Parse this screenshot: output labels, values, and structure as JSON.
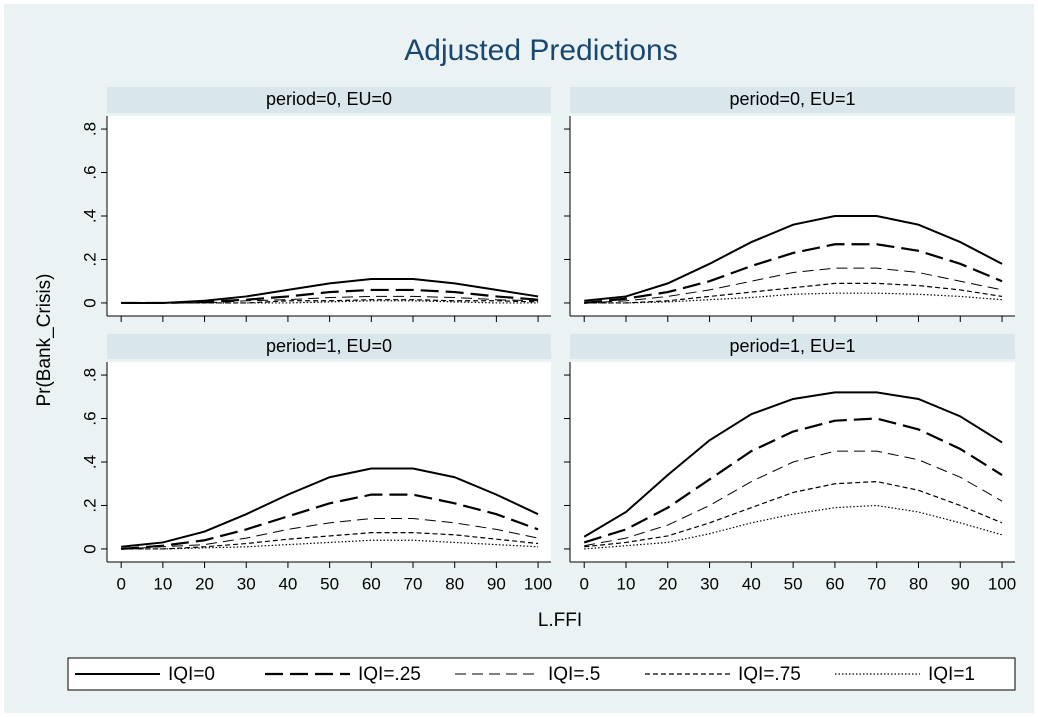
{
  "chart_data": {
    "type": "line",
    "title": "Adjusted Predictions",
    "x_label": "L.FFI",
    "y_label": "Pr(Bank_Crisis)",
    "x": [
      0,
      10,
      20,
      30,
      40,
      50,
      60,
      70,
      80,
      90,
      100
    ],
    "xlim": [
      -3.4,
      103.1
    ],
    "xticks": [
      0,
      10,
      20,
      30,
      40,
      50,
      60,
      70,
      80,
      90,
      100
    ],
    "ylim": [
      -0.06,
      0.86
    ],
    "yticks": [
      0,
      {
        "value": 0.2,
        "label": ".2"
      },
      {
        "value": 0.4,
        "label": ".4"
      },
      {
        "value": 0.6,
        "label": ".6"
      },
      {
        "value": 0.8,
        "label": ".8"
      }
    ],
    "grid": false,
    "series": [
      {
        "name": "IQI=0",
        "color": "#000000",
        "dash": "solid"
      },
      {
        "name": "IQI=.25",
        "color": "#000000",
        "dash": "long-dash"
      },
      {
        "name": "IQI=.5",
        "color": "#000000",
        "dash": "dash"
      },
      {
        "name": "IQI=.75",
        "color": "#000000",
        "dash": "short-dash"
      },
      {
        "name": "IQI=1",
        "color": "#000000",
        "dash": "dot"
      }
    ],
    "panels": [
      {
        "title": "period=0, EU=0",
        "values": [
          [
            0,
            0,
            0.01,
            0.03,
            0.06,
            0.09,
            0.11,
            0.11,
            0.09,
            0.06,
            0.03
          ],
          [
            0,
            0,
            0.005,
            0.015,
            0.03,
            0.05,
            0.06,
            0.06,
            0.05,
            0.03,
            0.015
          ],
          [
            0,
            0,
            0,
            0.01,
            0.015,
            0.025,
            0.03,
            0.03,
            0.025,
            0.015,
            0.01
          ],
          [
            0,
            0,
            0,
            0,
            0.01,
            0.01,
            0.015,
            0.015,
            0.01,
            0.01,
            0.005
          ],
          [
            0,
            0,
            0,
            0,
            0,
            0.005,
            0.01,
            0.01,
            0.005,
            0,
            0
          ]
        ]
      },
      {
        "title": "period=0, EU=1",
        "values": [
          [
            0.01,
            0.03,
            0.09,
            0.18,
            0.28,
            0.36,
            0.4,
            0.4,
            0.36,
            0.28,
            0.18
          ],
          [
            0,
            0.02,
            0.05,
            0.1,
            0.17,
            0.23,
            0.27,
            0.27,
            0.24,
            0.18,
            0.1
          ],
          [
            0,
            0.01,
            0.03,
            0.06,
            0.1,
            0.14,
            0.16,
            0.16,
            0.14,
            0.1,
            0.06
          ],
          [
            0,
            0,
            0.01,
            0.03,
            0.05,
            0.07,
            0.09,
            0.09,
            0.08,
            0.06,
            0.03
          ],
          [
            0,
            0,
            0.005,
            0.015,
            0.025,
            0.04,
            0.045,
            0.045,
            0.04,
            0.03,
            0.015
          ]
        ]
      },
      {
        "title": "period=1, EU=0",
        "values": [
          [
            0.01,
            0.03,
            0.08,
            0.16,
            0.25,
            0.33,
            0.37,
            0.37,
            0.33,
            0.25,
            0.16
          ],
          [
            0,
            0.015,
            0.04,
            0.09,
            0.15,
            0.21,
            0.25,
            0.25,
            0.21,
            0.16,
            0.09
          ],
          [
            0,
            0.01,
            0.02,
            0.05,
            0.09,
            0.12,
            0.14,
            0.14,
            0.12,
            0.09,
            0.05
          ],
          [
            0,
            0,
            0.01,
            0.025,
            0.045,
            0.06,
            0.075,
            0.075,
            0.065,
            0.045,
            0.025
          ],
          [
            0,
            0,
            0.005,
            0.01,
            0.02,
            0.03,
            0.04,
            0.04,
            0.03,
            0.02,
            0.01
          ]
        ]
      },
      {
        "title": "period=1, EU=1",
        "values": [
          [
            0.056,
            0.17,
            0.34,
            0.5,
            0.62,
            0.69,
            0.72,
            0.72,
            0.69,
            0.61,
            0.49
          ],
          [
            0.03,
            0.09,
            0.19,
            0.32,
            0.45,
            0.54,
            0.59,
            0.6,
            0.55,
            0.46,
            0.34
          ],
          [
            0.015,
            0.05,
            0.11,
            0.2,
            0.31,
            0.4,
            0.45,
            0.45,
            0.41,
            0.33,
            0.22
          ],
          [
            0.01,
            0.03,
            0.06,
            0.12,
            0.19,
            0.26,
            0.3,
            0.31,
            0.27,
            0.2,
            0.12
          ],
          [
            0,
            0.015,
            0.03,
            0.07,
            0.12,
            0.16,
            0.19,
            0.2,
            0.17,
            0.12,
            0.065
          ]
        ]
      }
    ]
  }
}
